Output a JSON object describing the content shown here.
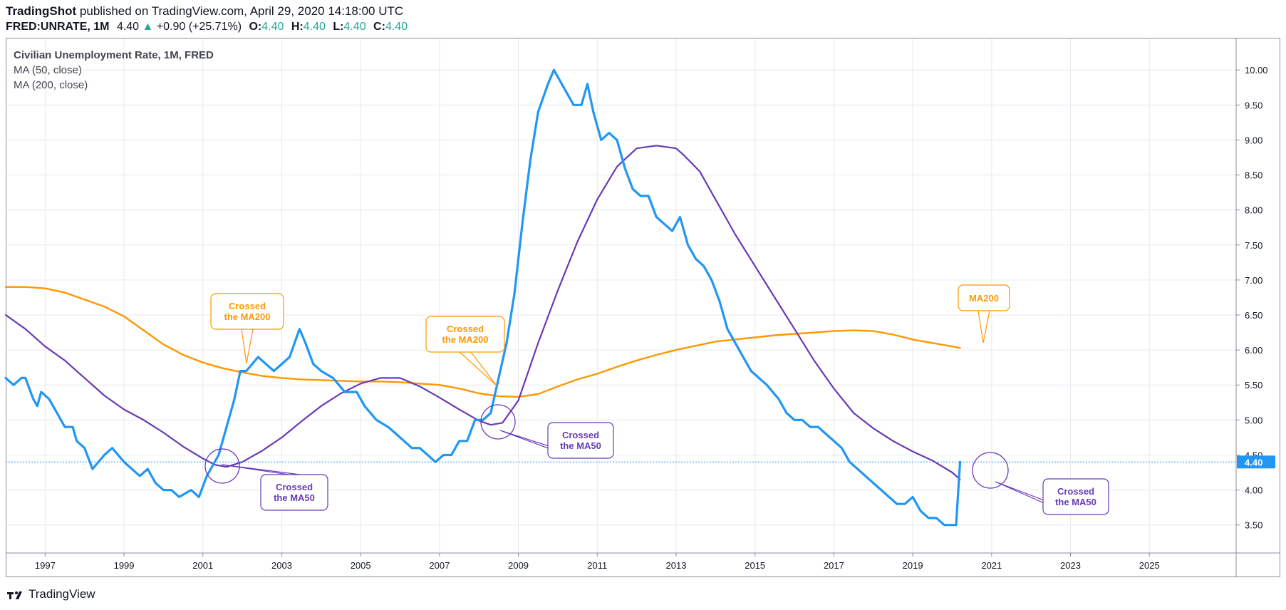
{
  "header": {
    "publisher": "TradingShot",
    "published_text": "published on TradingView.com, April 29, 2020 14:18:00 UTC",
    "symbol": "FRED:UNRATE, 1M",
    "last": "4.40",
    "change": "+0.90 (+25.71%)",
    "o_label": "O:",
    "o_value": "4.40",
    "h_label": "H:",
    "h_value": "4.40",
    "l_label": "L:",
    "l_value": "4.40",
    "c_label": "C:",
    "c_value": "4.40"
  },
  "legend": {
    "title": "Civilian Unemployment Rate, 1M, FRED",
    "ma50": "MA (50, close)",
    "ma200": "MA (200, close)"
  },
  "footer": {
    "brand": "TradingView"
  },
  "colors": {
    "price": "#2196f3",
    "ma50": "#673ab7",
    "ma200": "#ff9800",
    "up": "#26a69a",
    "grid": "#e6e9f0",
    "axis": "#8a8e99"
  },
  "chart_data": {
    "type": "line",
    "title": "Civilian Unemployment Rate, 1M, FRED",
    "x_ticks": [
      "1997",
      "1999",
      "2001",
      "2003",
      "2005",
      "2007",
      "2009",
      "2011",
      "2013",
      "2015",
      "2017",
      "2019",
      "2021",
      "2023",
      "2025"
    ],
    "y_ticks": [
      "3.50",
      "4.00",
      "4.50",
      "5.00",
      "5.50",
      "6.00",
      "6.50",
      "7.00",
      "7.50",
      "8.00",
      "8.50",
      "9.00",
      "9.50",
      "10.00"
    ],
    "xlim": [
      1996.0,
      2027.2
    ],
    "ylim": [
      3.1,
      10.45
    ],
    "last_value_label": "4.40",
    "last_value": 4.4,
    "series": [
      {
        "name": "FRED:UNRATE",
        "x": [
          1996.0,
          1996.2,
          1996.4,
          1996.5,
          1996.7,
          1996.8,
          1996.9,
          1997.1,
          1997.3,
          1997.5,
          1997.7,
          1997.8,
          1998.0,
          1998.2,
          1998.5,
          1998.7,
          1999.0,
          1999.2,
          1999.4,
          1999.6,
          1999.8,
          2000.0,
          2000.2,
          2000.4,
          2000.7,
          2000.9,
          2001.1,
          2001.4,
          2001.6,
          2001.8,
          2001.95,
          2002.1,
          2002.4,
          2002.6,
          2002.8,
          2003.0,
          2003.2,
          2003.45,
          2003.6,
          2003.8,
          2004.0,
          2004.3,
          2004.6,
          2004.9,
          2005.1,
          2005.4,
          2005.7,
          2005.9,
          2006.1,
          2006.3,
          2006.5,
          2006.7,
          2006.9,
          2007.1,
          2007.3,
          2007.5,
          2007.7,
          2007.9,
          2008.1,
          2008.3,
          2008.5,
          2008.7,
          2008.9,
          2009.1,
          2009.3,
          2009.5,
          2009.75,
          2009.9,
          2010.1,
          2010.4,
          2010.6,
          2010.75,
          2010.9,
          2011.1,
          2011.3,
          2011.5,
          2011.7,
          2011.9,
          2012.1,
          2012.3,
          2012.5,
          2012.7,
          2012.9,
          2013.1,
          2013.3,
          2013.5,
          2013.7,
          2013.9,
          2014.1,
          2014.3,
          2014.5,
          2014.7,
          2014.9,
          2015.1,
          2015.3,
          2015.6,
          2015.8,
          2016.0,
          2016.2,
          2016.4,
          2016.6,
          2016.8,
          2017.0,
          2017.2,
          2017.4,
          2017.6,
          2017.8,
          2018.0,
          2018.2,
          2018.4,
          2018.6,
          2018.8,
          2019.0,
          2019.2,
          2019.4,
          2019.6,
          2019.8,
          2020.0,
          2020.1,
          2020.2
        ],
        "values": [
          5.6,
          5.5,
          5.6,
          5.6,
          5.3,
          5.2,
          5.4,
          5.3,
          5.1,
          4.9,
          4.9,
          4.7,
          4.6,
          4.3,
          4.5,
          4.6,
          4.4,
          4.3,
          4.2,
          4.3,
          4.1,
          4.0,
          4.0,
          3.9,
          4.0,
          3.9,
          4.2,
          4.5,
          4.9,
          5.3,
          5.7,
          5.7,
          5.9,
          5.8,
          5.7,
          5.8,
          5.9,
          6.3,
          6.1,
          5.8,
          5.7,
          5.6,
          5.4,
          5.4,
          5.2,
          5.0,
          4.9,
          4.8,
          4.7,
          4.6,
          4.6,
          4.5,
          4.4,
          4.5,
          4.5,
          4.7,
          4.7,
          5.0,
          5.0,
          5.1,
          5.6,
          6.1,
          6.8,
          7.8,
          8.7,
          9.4,
          9.8,
          10.0,
          9.8,
          9.5,
          9.5,
          9.8,
          9.4,
          9.0,
          9.1,
          9.0,
          8.6,
          8.3,
          8.2,
          8.2,
          7.9,
          7.8,
          7.7,
          7.9,
          7.5,
          7.3,
          7.2,
          7.0,
          6.7,
          6.3,
          6.1,
          5.9,
          5.7,
          5.6,
          5.5,
          5.3,
          5.1,
          5.0,
          5.0,
          4.9,
          4.9,
          4.8,
          4.7,
          4.6,
          4.4,
          4.3,
          4.2,
          4.1,
          4.0,
          3.9,
          3.8,
          3.8,
          3.9,
          3.7,
          3.6,
          3.6,
          3.5,
          3.5,
          3.5,
          4.4
        ]
      },
      {
        "name": "MA (50, close)",
        "x": [
          1996.0,
          1996.5,
          1997.0,
          1997.5,
          1998.0,
          1998.5,
          1999.0,
          1999.5,
          2000.0,
          2000.5,
          2001.0,
          2001.3,
          2001.6,
          2002.0,
          2002.5,
          2003.0,
          2003.5,
          2004.0,
          2004.5,
          2005.0,
          2005.5,
          2006.0,
          2006.5,
          2007.0,
          2007.5,
          2008.0,
          2008.3,
          2008.6,
          2009.0,
          2009.5,
          2010.0,
          2010.5,
          2011.0,
          2011.5,
          2012.0,
          2012.5,
          2013.0,
          2013.2,
          2013.6,
          2014.0,
          2014.5,
          2015.0,
          2015.5,
          2016.0,
          2016.5,
          2017.0,
          2017.5,
          2018.0,
          2018.5,
          2019.0,
          2019.5,
          2020.0,
          2020.2
        ],
        "values": [
          6.5,
          6.3,
          6.05,
          5.85,
          5.6,
          5.35,
          5.15,
          5.0,
          4.82,
          4.62,
          4.45,
          4.36,
          4.33,
          4.4,
          4.56,
          4.75,
          4.98,
          5.2,
          5.38,
          5.52,
          5.6,
          5.6,
          5.48,
          5.32,
          5.15,
          4.99,
          4.93,
          4.96,
          5.28,
          6.1,
          6.85,
          7.55,
          8.15,
          8.62,
          8.88,
          8.92,
          8.88,
          8.78,
          8.55,
          8.15,
          7.65,
          7.2,
          6.75,
          6.3,
          5.85,
          5.45,
          5.1,
          4.88,
          4.7,
          4.55,
          4.42,
          4.25,
          4.15
        ]
      },
      {
        "name": "MA (200, close)",
        "x": [
          1996.0,
          1996.5,
          1997.0,
          1997.5,
          1998.0,
          1998.5,
          1999.0,
          1999.5,
          2000.0,
          2000.5,
          2001.0,
          2001.5,
          2002.0,
          2002.5,
          2003.0,
          2003.5,
          2004.0,
          2004.5,
          2005.0,
          2005.5,
          2006.0,
          2006.5,
          2007.0,
          2007.5,
          2008.0,
          2008.5,
          2009.0,
          2009.5,
          2010.0,
          2010.5,
          2011.0,
          2011.5,
          2012.0,
          2012.5,
          2013.0,
          2013.5,
          2014.0,
          2014.5,
          2015.0,
          2015.5,
          2016.0,
          2016.5,
          2017.0,
          2017.5,
          2018.0,
          2018.5,
          2019.0,
          2019.5,
          2020.0,
          2020.2
        ],
        "values": [
          6.9,
          6.9,
          6.88,
          6.82,
          6.72,
          6.62,
          6.48,
          6.28,
          6.08,
          5.93,
          5.82,
          5.74,
          5.68,
          5.63,
          5.6,
          5.58,
          5.57,
          5.56,
          5.55,
          5.55,
          5.54,
          5.52,
          5.5,
          5.45,
          5.38,
          5.34,
          5.33,
          5.37,
          5.48,
          5.58,
          5.66,
          5.76,
          5.85,
          5.93,
          6.0,
          6.06,
          6.12,
          6.15,
          6.18,
          6.21,
          6.23,
          6.25,
          6.27,
          6.28,
          6.27,
          6.22,
          6.15,
          6.1,
          6.05,
          6.03
        ]
      }
    ],
    "annotations": [
      {
        "text": "Crossed\nthe MA200",
        "color": "#ff9800",
        "x": 2002.0
      },
      {
        "text": "Crossed\nthe MA200",
        "color": "#ff9800",
        "x": 2007.0
      },
      {
        "text": "Crossed\nthe MA50",
        "color": "#673ab7",
        "x": 2002.0
      },
      {
        "text": "Crossed\nthe MA50",
        "color": "#673ab7",
        "x": 2009.1
      },
      {
        "text": "Crossed\nthe MA50",
        "color": "#673ab7",
        "x": 2021.2
      },
      {
        "text": "MA200",
        "color": "#ff9800",
        "x": 2021.0
      }
    ],
    "grid": true
  }
}
